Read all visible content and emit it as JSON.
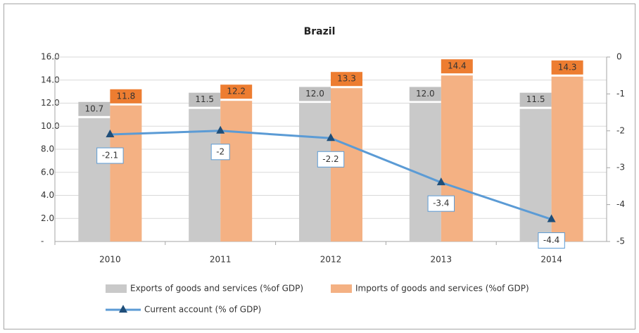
{
  "chart_data": {
    "type": "bar_line",
    "title": "Brazil",
    "categories": [
      "2010",
      "2011",
      "2012",
      "2013",
      "2014"
    ],
    "series": [
      {
        "name": "Exports of goods and services (%of GDP)",
        "color": "#c9c9c9",
        "type": "bar",
        "values": [
          10.7,
          11.5,
          12.0,
          12.0,
          11.5
        ],
        "value_labels": [
          "10.7",
          "11.5",
          "12.0",
          "12.0",
          "11.5"
        ]
      },
      {
        "name": "Imports of goods and services (%of GDP)",
        "color": "#f4b183",
        "type": "bar",
        "values": [
          11.8,
          12.2,
          13.3,
          14.4,
          14.3
        ]
      },
      {
        "name": "Current account  (% of GDP)",
        "color": "#5b9bd5",
        "type": "line",
        "axis": "y2",
        "values": [
          -2.1,
          -2,
          -2.2,
          -3.4,
          -4.4
        ]
      }
    ],
    "ylim": [
      0,
      16
    ],
    "yticks": [
      {
        "value": 0,
        "label": "-"
      },
      {
        "value": 2,
        "label": "2.0"
      },
      {
        "value": 4,
        "label": "4.0"
      },
      {
        "value": 6,
        "label": "6.0"
      },
      {
        "value": 8,
        "label": "8.0"
      },
      {
        "value": 10,
        "label": "10.0"
      },
      {
        "value": 12,
        "label": "12.0"
      },
      {
        "value": 14,
        "label": "14.0"
      },
      {
        "value": 16,
        "label": "16.0"
      }
    ],
    "y2lim": [
      -5,
      0
    ],
    "y2ticks": [
      -5,
      -4,
      -3,
      -2,
      -1,
      0
    ],
    "grid": true
  }
}
